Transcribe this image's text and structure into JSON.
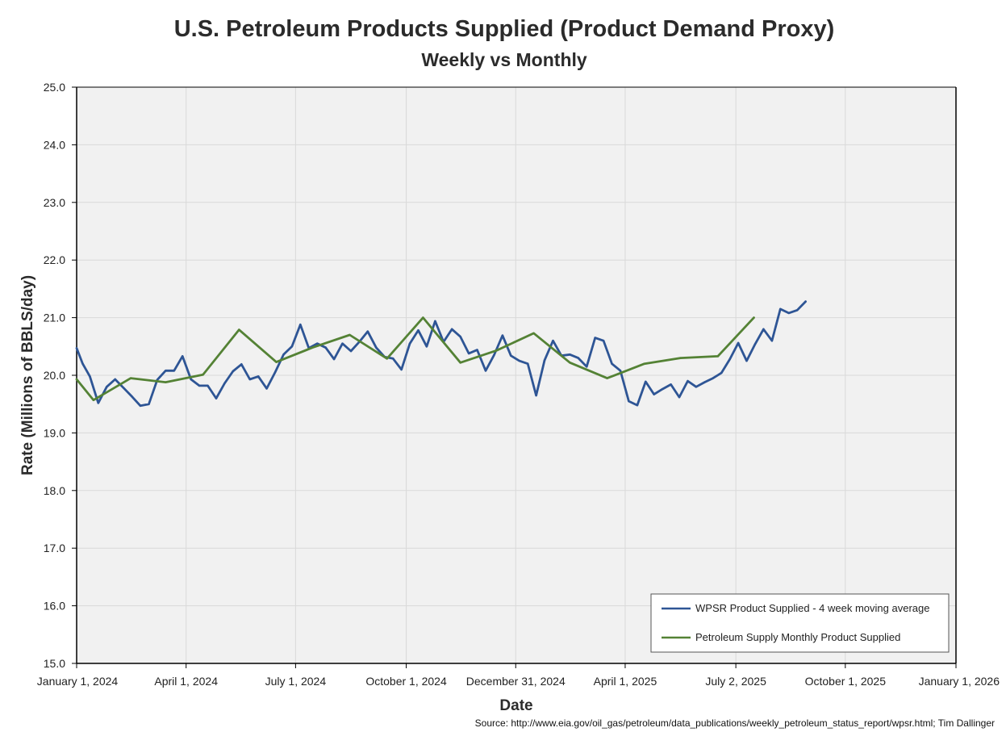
{
  "colors": {
    "weekly": "#2e5595",
    "monthly": "#548235",
    "plot_bg": "#f1f1f1",
    "grid": "#d9d9d9"
  },
  "chart_data": {
    "type": "line",
    "title": "U.S. Petroleum Products Supplied (Product Demand Proxy)",
    "subtitle": "Weekly vs Monthly",
    "xlabel": "Date",
    "ylabel": "Rate (Millions of BBLS/day)",
    "ylim": [
      15.0,
      25.0
    ],
    "yticks": [
      "15.0",
      "16.0",
      "17.0",
      "18.0",
      "19.0",
      "20.0",
      "21.0",
      "22.0",
      "23.0",
      "24.0",
      "25.0"
    ],
    "xlim_days": [
      0,
      731
    ],
    "xticks": [
      {
        "label": "January 1, 2024",
        "day": 0
      },
      {
        "label": "April 1, 2024",
        "day": 91
      },
      {
        "label": "July 1, 2024",
        "day": 182
      },
      {
        "label": "October 1, 2024",
        "day": 274
      },
      {
        "label": "December 31, 2024",
        "day": 365
      },
      {
        "label": "April 1, 2025",
        "day": 456
      },
      {
        "label": "July 2, 2025",
        "day": 548
      },
      {
        "label": "October 1, 2025",
        "day": 639
      },
      {
        "label": "January 1, 2026",
        "day": 731
      }
    ],
    "legend_position": "bottom-right",
    "series": [
      {
        "name": "WPSR Product Supplied - 4 week moving average",
        "key": "weekly",
        "x_days": [
          0,
          5,
          11,
          18,
          25,
          32,
          39,
          46,
          53,
          60,
          67,
          74,
          81,
          88,
          95,
          102,
          109,
          116,
          123,
          130,
          137,
          144,
          151,
          158,
          165,
          172,
          179,
          186,
          193,
          200,
          207,
          214,
          221,
          228,
          235,
          242,
          249,
          256,
          263,
          270,
          277,
          284,
          291,
          298,
          305,
          312,
          319,
          326,
          333,
          340,
          347,
          354,
          361,
          368,
          375,
          382,
          389,
          396,
          403,
          410,
          417,
          424,
          431,
          438,
          445,
          452,
          459,
          466,
          473,
          480,
          487,
          494,
          501,
          508,
          515,
          522,
          529,
          536,
          543,
          550,
          557,
          564,
          571,
          578,
          585,
          592,
          599,
          606
        ],
        "values": [
          20.47,
          20.2,
          19.98,
          19.52,
          19.8,
          19.93,
          19.78,
          19.63,
          19.47,
          19.5,
          19.92,
          20.08,
          20.08,
          20.33,
          19.93,
          19.82,
          19.82,
          19.6,
          19.86,
          20.07,
          20.19,
          19.93,
          19.98,
          19.77,
          20.05,
          20.36,
          20.5,
          20.88,
          20.47,
          20.55,
          20.48,
          20.28,
          20.55,
          20.42,
          20.58,
          20.76,
          20.48,
          20.32,
          20.29,
          20.1,
          20.55,
          20.78,
          20.5,
          20.94,
          20.58,
          20.8,
          20.67,
          20.38,
          20.44,
          20.08,
          20.35,
          20.69,
          20.34,
          20.25,
          20.2,
          19.65,
          20.26,
          20.6,
          20.34,
          20.36,
          20.3,
          20.15,
          20.65,
          20.6,
          20.2,
          20.08,
          19.55,
          19.48,
          19.89,
          19.67,
          19.76,
          19.84,
          19.62,
          19.9,
          19.8,
          19.88,
          19.95,
          20.04,
          20.28,
          20.56,
          20.25,
          20.54,
          20.8,
          20.6,
          21.15,
          21.08,
          21.13,
          21.28
        ]
      },
      {
        "name": "Petroleum Supply Monthly Product Supplied",
        "key": "monthly",
        "x_days": [
          0,
          14,
          45,
          74,
          105,
          135,
          166,
          196,
          227,
          258,
          288,
          319,
          349,
          380,
          410,
          441,
          472,
          502,
          533,
          563
        ],
        "values": [
          19.93,
          19.57,
          19.95,
          19.88,
          20.01,
          20.79,
          20.23,
          20.48,
          20.7,
          20.29,
          21.0,
          20.22,
          20.43,
          20.73,
          20.22,
          19.95,
          20.2,
          20.3,
          20.33,
          21.0
        ]
      }
    ]
  },
  "source": "Source: http://www.eia.gov/oil_gas/petroleum/data_publications/weekly_petroleum_status_report/wpsr.html; Tim Dallinger"
}
